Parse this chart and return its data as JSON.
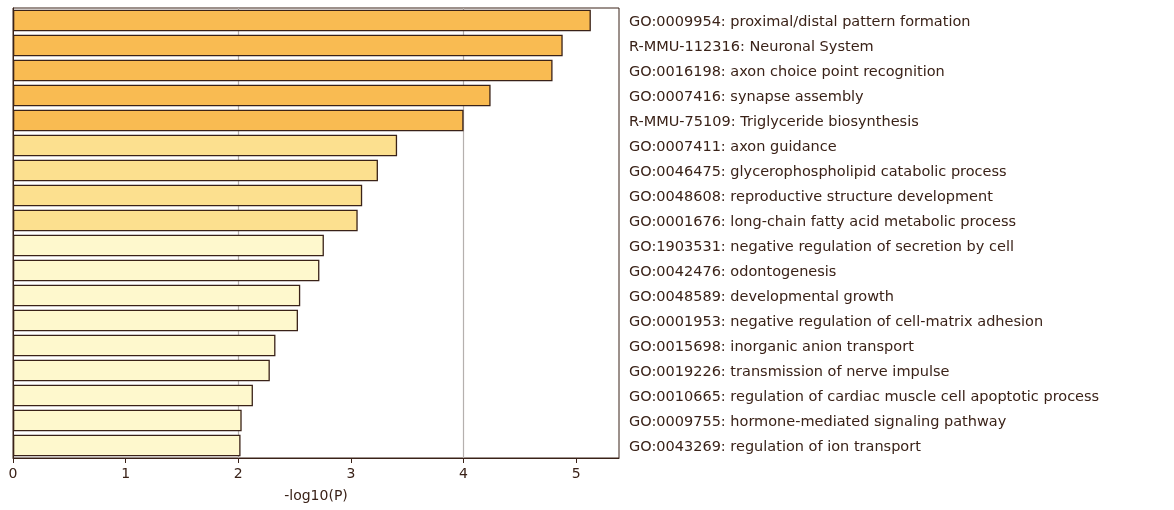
{
  "chart_data": {
    "type": "bar",
    "orientation": "horizontal",
    "xlabel": "-log10(P)",
    "categories": [
      "GO:0009954: proximal/distal pattern formation",
      "R-MMU-112316: Neuronal System",
      "GO:0016198: axon choice point recognition",
      "GO:0007416: synapse assembly",
      "R-MMU-75109: Triglyceride biosynthesis",
      "GO:0007411: axon guidance",
      "GO:0046475: glycerophospholipid catabolic process",
      "GO:0048608: reproductive structure development",
      "GO:0001676: long-chain fatty acid metabolic process",
      "GO:1903531: negative regulation of secretion by cell",
      "GO:0042476: odontogenesis",
      "GO:0048589: developmental growth",
      "GO:0001953: negative regulation of cell-matrix adhesion",
      "GO:0015698: inorganic anion transport",
      "GO:0019226: transmission of nerve impulse",
      "GO:0010665: regulation of cardiac muscle cell apoptotic process",
      "GO:0009755: hormone-mediated signaling pathway",
      "GO:0043269: regulation of ion transport"
    ],
    "values": [
      5.13,
      4.88,
      4.79,
      4.24,
      4.0,
      3.41,
      3.24,
      3.1,
      3.06,
      2.76,
      2.72,
      2.55,
      2.53,
      2.33,
      2.28,
      2.13,
      2.03,
      2.02
    ],
    "colors": [
      "#f9bb52",
      "#f9bb52",
      "#f9bb52",
      "#f9bb52",
      "#f9bb52",
      "#fce08f",
      "#fce08f",
      "#fce08f",
      "#fce08f",
      "#fef8cd",
      "#fef8cd",
      "#fef8cd",
      "#fef8cd",
      "#fef8cd",
      "#fef8cd",
      "#fef8cd",
      "#fef8cd",
      "#fef8cd"
    ],
    "xlim": [
      0,
      5.38
    ],
    "xticks": [
      0,
      1,
      2,
      3,
      4,
      5
    ],
    "ref_lines": [
      {
        "axis": "x",
        "value": 2,
        "color": "#b5b0ae"
      },
      {
        "axis": "x",
        "value": 4,
        "color": "#b5b0ae"
      }
    ],
    "grid": false
  }
}
